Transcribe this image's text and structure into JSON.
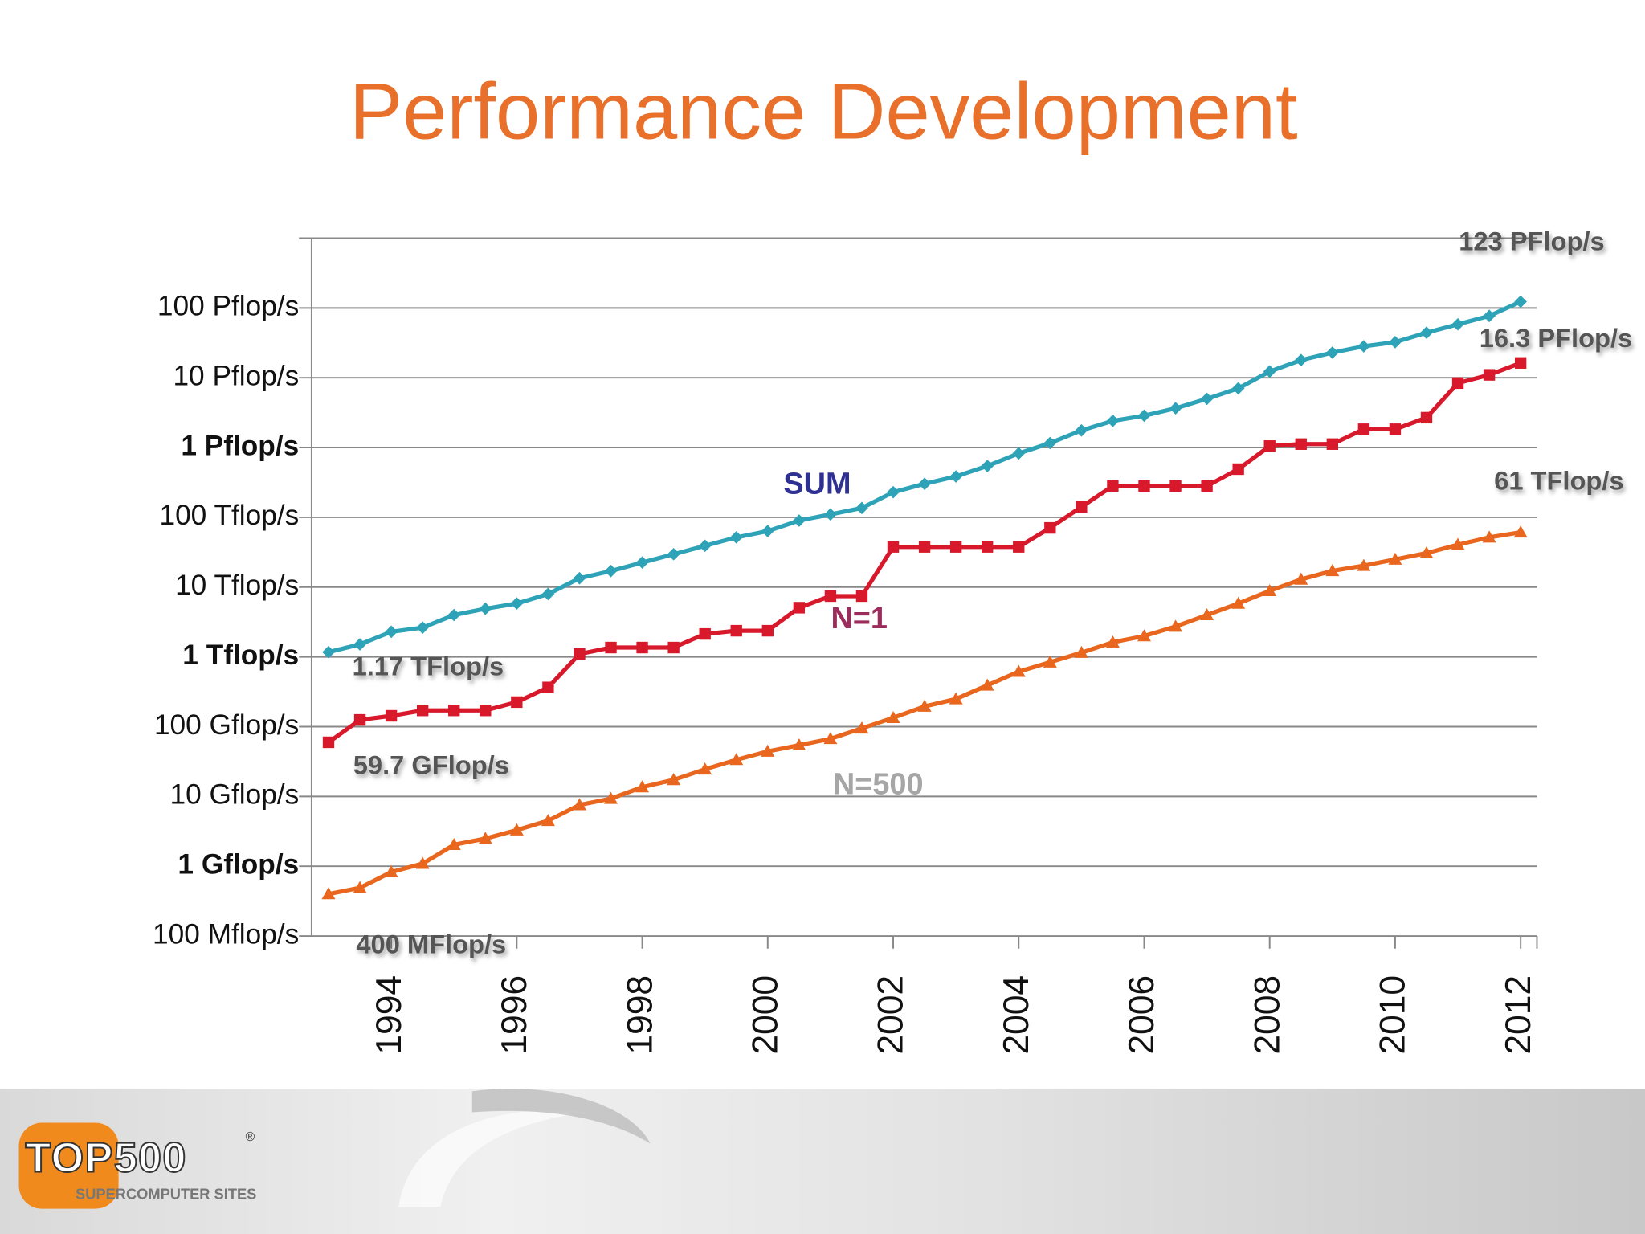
{
  "chart_data": {
    "type": "line",
    "title": "Performance Development",
    "log_scale": true,
    "grid": true,
    "xlim": [
      1992.73,
      2012.26
    ],
    "xticks": [
      1994,
      1996,
      1998,
      2000,
      2002,
      2004,
      2006,
      2008,
      2010,
      2012
    ],
    "ylim": [
      0.1,
      1000000000
    ],
    "yticks": [
      {
        "value": 0.1,
        "label": "100 Mflop/s"
      },
      {
        "value": 1,
        "label": "1 Gflop/s"
      },
      {
        "value": 10,
        "label": "10 Gflop/s"
      },
      {
        "value": 100,
        "label": "100 Gflop/s"
      },
      {
        "value": 1000,
        "label": "1 Tflop/s"
      },
      {
        "value": 10000,
        "label": "10 Tflop/s"
      },
      {
        "value": 100000,
        "label": "100 Tflop/s"
      },
      {
        "value": 1000000,
        "label": "1 Pflop/s"
      },
      {
        "value": 10000000,
        "label": "10 Pflop/s"
      },
      {
        "value": 100000000,
        "label": "100 Pflop/s"
      }
    ],
    "x": [
      1993,
      1993.5,
      1994,
      1994.5,
      1995,
      1995.5,
      1996,
      1996.5,
      1997,
      1997.5,
      1998,
      1998.5,
      1999,
      1999.5,
      2000,
      2000.5,
      2001,
      2001.5,
      2002,
      2002.5,
      2003,
      2003.5,
      2004,
      2004.5,
      2005,
      2005.5,
      2006,
      2006.5,
      2007,
      2007.5,
      2008,
      2008.5,
      2009,
      2009.5,
      2010,
      2010.5,
      2011,
      2011.5,
      2012
    ],
    "series": [
      {
        "name": "SUM",
        "color": "#2ea3b8",
        "label_color": "#2e3192",
        "marker": "diamond",
        "values": [
          1170,
          1510,
          2290,
          2630,
          3980,
          4900,
          5820,
          7960,
          13400,
          17000,
          22500,
          29600,
          39100,
          51600,
          63500,
          89800,
          110000,
          136000,
          229000,
          302000,
          385000,
          544000,
          824000,
          1160000,
          1760000,
          2410000,
          2860000,
          3650000,
          4990000,
          7050000,
          12300000,
          17900000,
          22900000,
          28200000,
          32400000,
          44200000,
          58300000,
          76900000,
          123000000
        ]
      },
      {
        "name": "N=1",
        "color": "#d7192b",
        "label_color": "#9b2c5c",
        "marker": "square",
        "values": [
          59.7,
          125,
          143,
          171,
          171,
          171,
          225,
          365,
          1100,
          1360,
          1360,
          1360,
          2130,
          2370,
          2370,
          5070,
          7430,
          7430,
          37700,
          37700,
          37700,
          37700,
          37700,
          70500,
          141000,
          281000,
          281000,
          281000,
          281000,
          490000,
          1050000,
          1120000,
          1120000,
          1830000,
          1830000,
          2680000,
          8380000,
          11000000,
          16300000
        ]
      },
      {
        "name": "N=500",
        "color": "#e8661d",
        "label_color": "#a6a6a6",
        "marker": "triangle",
        "values": [
          0.4,
          0.49,
          0.824,
          1.09,
          2.03,
          2.49,
          3.29,
          4.49,
          7.55,
          9.29,
          13.6,
          17.3,
          24.5,
          33.5,
          44.2,
          54.3,
          66.9,
          94.6,
          134,
          195,
          249,
          391,
          614,
          838,
          1150,
          1620,
          1990,
          2720,
          3980,
          5820,
          8830,
          12900,
          17100,
          20300,
          24900,
          30700,
          40500,
          51600,
          61000
        ]
      }
    ],
    "annotations": [
      "123 PFlop/s",
      "16.3 PFlop/s",
      "61 TFlop/s",
      "1.17 TFlop/s",
      "59.7 GFlop/s",
      "400 MFlop/s"
    ]
  },
  "logo": {
    "text": "TOP500",
    "mark": "®",
    "tagline": "SUPERCOMPUTER SITES"
  }
}
